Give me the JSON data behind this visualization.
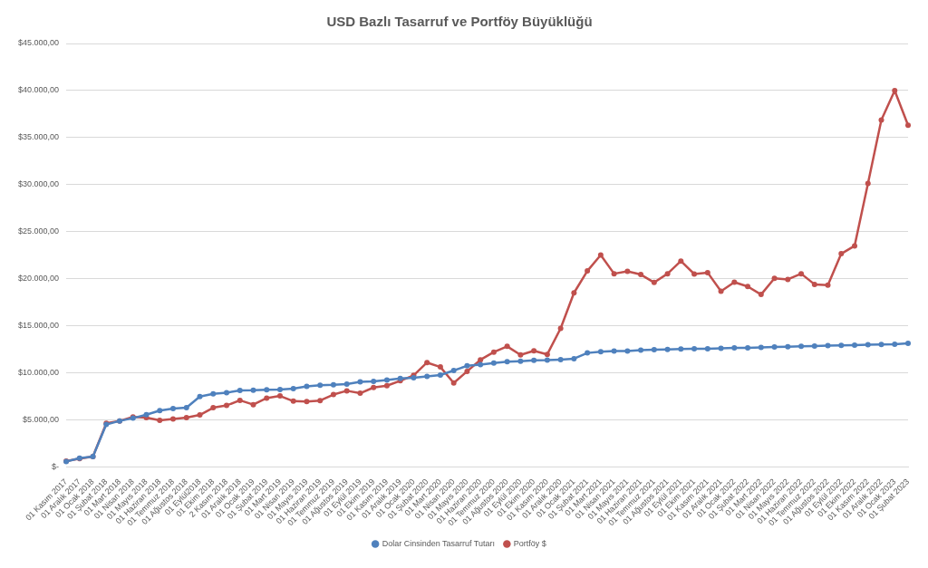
{
  "chart_data": {
    "type": "line",
    "title": "USD Bazlı Tasarruf ve Portföy Büyüklüğü",
    "categories": [
      "01 Kasım 2017",
      "01 Aralık 2017",
      "01 Ocak 2018",
      "01 Şubat 2018",
      "01 Mart 2018",
      "01 Nisan 2018",
      "01 Mayıs 2018",
      "01 Haziran 2018",
      "01 Temmuz 2018",
      "01 Ağustos 2018",
      "01 Eylül2018",
      "01 Ekim 2018",
      "2 Kasım 2018",
      "01 Aralık 2018",
      "01 Ocak 2019",
      "01 Şubat 2019",
      "01 Mart 2019",
      "01 Nisan 2019",
      "01 Mayıs 2019",
      "01 Haziran 2019",
      "01 Temmuz 2019",
      "01 Ağustos 2019",
      "01 Eylül 2019",
      "01 Ekim 2019",
      "01 Kasım 2019",
      "01 Aralık 2019",
      "01 Ocak 2020",
      "01 Şubat 2020",
      "01 Mart 2020",
      "01 Nisan 2020",
      "01 Mayıs 2020",
      "01 Haziran 2020",
      "01 Temmuz 2020",
      "01 Ağustos 2020",
      "01 Eylül 2020",
      "01 Ekim 2020",
      "01 Kasım 2020",
      "01 Aralık 2020",
      "01 Ocak 2021",
      "01 Şubat 2021",
      "01 Mart 2021",
      "01 Nisan 2021",
      "01 Mayıs 2021",
      "01 Haziran 2021",
      "01 Temmuz 2021",
      "01 Ağustos 2021",
      "01 Eylül 2021",
      "01 Ekim 2021",
      "01 Kasım 2021",
      "01 Aralık 2021",
      "01 Ocak 2022",
      "01 Şubat 2022",
      "01 Mart 2022",
      "01 Nisan 2022",
      "01 Mayıs 2022",
      "01 Haziran 2022",
      "01 Temmuz 2022",
      "01 Ağustos 2022",
      "01 Eylül 2022",
      "01 Ekim 2022",
      "01 Kasım 2022",
      "01 Aralık 2022",
      "01 Ocak 2023",
      "01 Şubat 2023"
    ],
    "series": [
      {
        "name": "Dolar Cinsinden Tasarruf Tutarı",
        "color": "#4f81bd",
        "values": [
          580,
          950,
          1120,
          4520,
          4900,
          5190,
          5560,
          6000,
          6220,
          6310,
          7490,
          7780,
          7900,
          8130,
          8150,
          8210,
          8240,
          8330,
          8560,
          8700,
          8730,
          8820,
          9050,
          9110,
          9250,
          9420,
          9480,
          9630,
          9770,
          10260,
          10750,
          10870,
          11050,
          11190,
          11250,
          11340,
          11360,
          11420,
          11510,
          12120,
          12260,
          12320,
          12320,
          12410,
          12470,
          12500,
          12530,
          12560,
          12560,
          12610,
          12670,
          12670,
          12700,
          12760,
          12790,
          12820,
          12850,
          12900,
          12930,
          12960,
          12990,
          13020,
          13050,
          13140
        ]
      },
      {
        "name": "Portföy $",
        "color": "#c0504d",
        "values": [
          630,
          900,
          1120,
          4640,
          4900,
          5330,
          5250,
          4960,
          5100,
          5250,
          5530,
          6300,
          6540,
          7090,
          6630,
          7320,
          7550,
          7000,
          6950,
          7060,
          7700,
          8100,
          7840,
          8450,
          8640,
          9160,
          9740,
          11100,
          10630,
          8930,
          10170,
          11390,
          12210,
          12820,
          11920,
          12350,
          11970,
          14730,
          18510,
          20830,
          22520,
          20540,
          20800,
          20450,
          19610,
          20540,
          21880,
          20510,
          20660,
          18680,
          19640,
          19180,
          18330,
          20050,
          19930,
          20540,
          19410,
          19320,
          22660,
          23500,
          30120,
          36860,
          40000,
          36310
        ]
      }
    ],
    "ylim": [
      0,
      45000
    ],
    "yticks": [
      {
        "value": 0,
        "label": "$-"
      },
      {
        "value": 5000,
        "label": "$5.000,00"
      },
      {
        "value": 10000,
        "label": "$10.000,00"
      },
      {
        "value": 15000,
        "label": "$15.000,00"
      },
      {
        "value": 20000,
        "label": "$20.000,00"
      },
      {
        "value": 25000,
        "label": "$25.000,00"
      },
      {
        "value": 30000,
        "label": "$30.000,00"
      },
      {
        "value": 35000,
        "label": "$35.000,00"
      },
      {
        "value": 40000,
        "label": "$40.000,00"
      },
      {
        "value": 45000,
        "label": "$45.000,00"
      }
    ],
    "grid": "y",
    "legend": "bottom",
    "marker": "circle",
    "line_style": "solid"
  }
}
